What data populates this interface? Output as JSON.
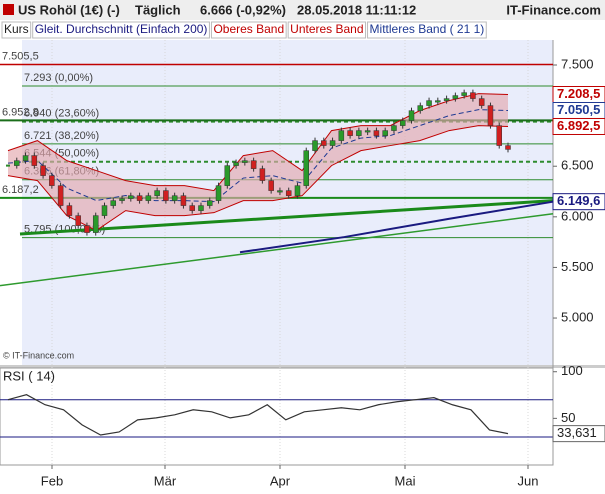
{
  "header": {
    "title": "US Rohöl (1€) (-)",
    "interval": "Täglich",
    "quote": "6.666 (-0,92%)",
    "timestamp": "28.05.2018 11:11:12",
    "brand": "IT-Finance.com"
  },
  "chart_data": [
    {
      "type": "line",
      "note": "© IT-Finance.com",
      "ylim": [
        4.536,
        7.747
      ],
      "yticks": [
        {
          "value": 5.0,
          "label": "5.000"
        },
        {
          "value": 5.5,
          "label": "5.500"
        },
        {
          "value": 6.0,
          "label": "6.000"
        },
        {
          "value": 6.5,
          "label": "6.500"
        },
        {
          "value": 7.0,
          "label": "7.000"
        },
        {
          "value": 7.5,
          "label": "7.500"
        }
      ],
      "series": [
        {
          "name": "Kurs",
          "color": "#222222",
          "values": [
            6.506,
            6.555,
            6.605,
            6.506,
            6.407,
            6.308,
            6.111,
            6.012,
            5.913,
            5.844,
            6.012,
            6.111,
            6.16,
            6.18,
            6.209,
            6.16,
            6.209,
            6.259,
            6.16,
            6.209,
            6.111,
            6.061,
            6.111,
            6.16,
            6.308,
            6.506,
            6.536,
            6.555,
            6.476,
            6.358,
            6.259,
            6.259,
            6.209,
            6.308,
            6.654,
            6.753,
            6.704,
            6.753,
            6.852,
            6.802,
            6.852,
            6.852,
            6.802,
            6.852,
            6.901,
            6.951,
            7.049,
            7.099,
            7.148,
            7.148,
            7.168,
            7.198,
            7.227,
            7.168,
            7.099,
            6.901,
            6.704,
            6.666
          ]
        },
        {
          "name": "Gleit. Durchschnitt (Einfach 200)",
          "color": "#1a1a80",
          "values": [
            5.65,
            5.8,
            5.98,
            6.1496
          ]
        },
        {
          "name": "Oberes Band",
          "color": "#c00000",
          "values": [
            6.654,
            6.753,
            6.555,
            6.457,
            6.358,
            6.308,
            6.308,
            6.259,
            6.605,
            6.654,
            6.457,
            6.852,
            6.901,
            6.901,
            7.049,
            7.148,
            7.217,
            7.2085
          ]
        },
        {
          "name": "Unteres Band",
          "color": "#c00000",
          "values": [
            6.407,
            6.358,
            6.012,
            5.864,
            6.061,
            6.012,
            6.012,
            6.041,
            6.16,
            6.16,
            6.209,
            6.506,
            6.654,
            6.704,
            6.753,
            6.852,
            6.901,
            6.8925
          ]
        },
        {
          "name": "Mittleres Band ( 21 1)",
          "color": "#1f3a93",
          "values": [
            6.53,
            6.556,
            6.284,
            6.161,
            6.21,
            6.16,
            6.16,
            6.15,
            6.383,
            6.407,
            6.333,
            6.679,
            6.778,
            6.803,
            6.901,
            7.0,
            7.059,
            7.0505
          ]
        }
      ],
      "levels": [
        {
          "value": 7.5055,
          "label": "7.505,5",
          "color": "#c00000"
        },
        {
          "value": 6.9528,
          "label": "6.952,8",
          "color": "#1a6e1a"
        },
        {
          "value": 6.1872,
          "label": "6.187,2",
          "color": "#1a8a1a"
        }
      ],
      "fibonacci": [
        {
          "value": 7.293,
          "label": "7.293 (0,00%)"
        },
        {
          "value": 6.94,
          "label": "6.940 (23,60%)"
        },
        {
          "value": 6.721,
          "label": "6.721 (38,20%)"
        },
        {
          "value": 6.544,
          "label": "6.544 (50,00%)"
        },
        {
          "value": 6.366,
          "label": "6.366 (61,80%)"
        },
        {
          "value": 5.795,
          "label": "5.795 (100,00%)"
        }
      ],
      "fib_color": "#2e8b2e",
      "trendlines": [
        {
          "color": "#1a8a1a",
          "values": [
            5.83,
            6.16
          ]
        },
        {
          "color": "#2e9a2e",
          "values": [
            5.32,
            6.03
          ]
        }
      ],
      "price_labels": [
        {
          "value": 7.2085,
          "label": "7.208,5",
          "color": "#c00000"
        },
        {
          "value": 7.0505,
          "label": "7.050,5",
          "color": "#1f3a93"
        },
        {
          "value": 6.8925,
          "label": "6.892,5",
          "color": "#c00000"
        },
        {
          "value": 6.1496,
          "label": "6.149,6",
          "color": "#1a1a80"
        }
      ]
    },
    {
      "type": "line",
      "title": "RSI ( 14)",
      "color": "#333333",
      "ylim": [
        0,
        104
      ],
      "yticks": [
        100,
        50
      ],
      "bands": [
        70,
        30
      ],
      "band_color": "#1a1a80",
      "values": [
        70,
        75.4,
        64.6,
        59.2,
        43,
        32.2,
        35.4,
        48.4,
        50.5,
        53.8,
        59.2,
        57,
        50.5,
        53.8,
        64.6,
        48.4,
        57,
        59.2,
        61.4,
        59.2,
        64.6,
        67.8,
        70,
        72.2,
        64.6,
        59.2,
        37.6,
        33.631
      ],
      "value_labels": [
        null,
        null,
        null,
        null,
        null,
        null,
        null,
        null,
        null,
        null,
        null,
        null,
        null,
        null,
        null,
        null,
        null,
        null,
        null,
        null,
        null,
        null,
        null,
        null,
        null,
        null,
        null,
        "33,631"
      ],
      "x_labels": [
        "Feb",
        "Mär",
        "Apr",
        "Mai",
        "Jun"
      ]
    }
  ]
}
